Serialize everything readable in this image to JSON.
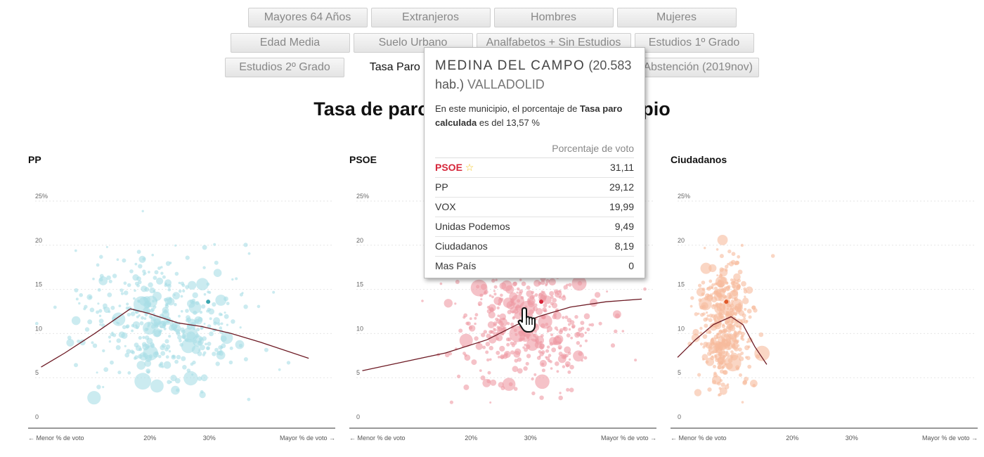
{
  "buttons": {
    "row1": [
      "Mayores 64 Años",
      "Extranjeros",
      "Hombres",
      "Mujeres"
    ],
    "row2": [
      "Edad Media",
      "Suelo Urbano",
      "Analfabetos + Sin Estudios",
      "Estudios 1º Grado"
    ],
    "row3": [
      "Estudios 2º Grado",
      "Tasa Paro Calc",
      "e Abstención (2019nov)"
    ],
    "active": "Tasa Paro Calc"
  },
  "title": "Tasa de paro",
  "title_right": "cipio",
  "tooltip": {
    "name": "MEDINA DEL CAMPO",
    "hab_open": "(20.583",
    "hab_close": "hab.)",
    "province": "VALLADOLID",
    "desc_1": "En este municipio, el porcentaje de ",
    "desc_bold": "Tasa paro calculada",
    "desc_2": " es del 13,57 %",
    "table_header": "Porcentaje de voto",
    "winner_star": "☆",
    "rows": [
      {
        "party": "PSOE",
        "value": "31,11"
      },
      {
        "party": "PP",
        "value": "29,12"
      },
      {
        "party": "VOX",
        "value": "19,99"
      },
      {
        "party": "Unidas Podemos",
        "value": "9,49"
      },
      {
        "party": "Ciudadanos",
        "value": "8,19"
      },
      {
        "party": "Mas País",
        "value": "0"
      }
    ]
  },
  "chart_data": [
    {
      "type": "scatter",
      "title": "PP",
      "color": "#a8dde6",
      "highlight_color": "#3aa6b0",
      "line_color": "#6d1a24",
      "y_ticks": [
        "0",
        "5",
        "10",
        "15",
        "20",
        "25%"
      ],
      "x_ticks": [
        "20%",
        "30%"
      ],
      "x_label_left": "← Menor % de voto",
      "x_label_right": "Mayor % de voto →",
      "xlim": [
        0,
        50
      ],
      "ylim": [
        0,
        25
      ],
      "center": [
        21,
        11
      ],
      "spread": [
        7,
        3.5
      ],
      "highlight": [
        29.1,
        13.6
      ],
      "trend": [
        [
          1,
          6.2
        ],
        [
          5,
          7.8
        ],
        [
          10,
          10
        ],
        [
          16,
          12.8
        ],
        [
          19,
          12.3
        ],
        [
          24,
          11.2
        ],
        [
          28,
          10.8
        ],
        [
          33,
          10
        ],
        [
          38,
          9
        ],
        [
          46,
          7.2
        ]
      ]
    },
    {
      "type": "scatter",
      "title": "PSOE",
      "color": "#ee9aa4",
      "highlight_color": "#d6263a",
      "line_color": "#6d1a24",
      "y_ticks": [
        "0",
        "5",
        "10",
        "15",
        "20",
        "25%"
      ],
      "x_ticks": [
        "20%",
        "30%"
      ],
      "x_label_left": "← Menor % de voto",
      "x_label_right": "Mayor % de voto →",
      "xlim": [
        0,
        50
      ],
      "ylim": [
        0,
        25
      ],
      "center": [
        29,
        11
      ],
      "spread": [
        6,
        3.5
      ],
      "highlight": [
        31.1,
        13.6
      ],
      "trend": [
        [
          1,
          5.8
        ],
        [
          8,
          6.8
        ],
        [
          15,
          7.8
        ],
        [
          22,
          9.3
        ],
        [
          27,
          11
        ],
        [
          31,
          12
        ],
        [
          36,
          13
        ],
        [
          42,
          13.6
        ],
        [
          48,
          13.9
        ]
      ]
    },
    {
      "type": "scatter",
      "title": "Ciudadanos",
      "color": "#f7ba9c",
      "highlight_color": "#e05a2a",
      "line_color": "#6d1a24",
      "y_ticks": [
        "0",
        "5",
        "10",
        "15",
        "20",
        "25%"
      ],
      "x_ticks": [
        "20%",
        "30%"
      ],
      "x_label_left": "← Menor % de voto",
      "x_label_right": "Mayor % de voto →",
      "xlim": [
        0,
        50
      ],
      "ylim": [
        0,
        25
      ],
      "center": [
        8,
        11
      ],
      "spread": [
        2.2,
        3.8
      ],
      "highlight": [
        8.19,
        13.6
      ],
      "trend": [
        [
          0,
          7.3
        ],
        [
          3,
          9.3
        ],
        [
          6,
          11
        ],
        [
          9,
          11.9
        ],
        [
          11,
          11
        ],
        [
          13,
          8.5
        ],
        [
          15,
          6.5
        ]
      ]
    }
  ]
}
